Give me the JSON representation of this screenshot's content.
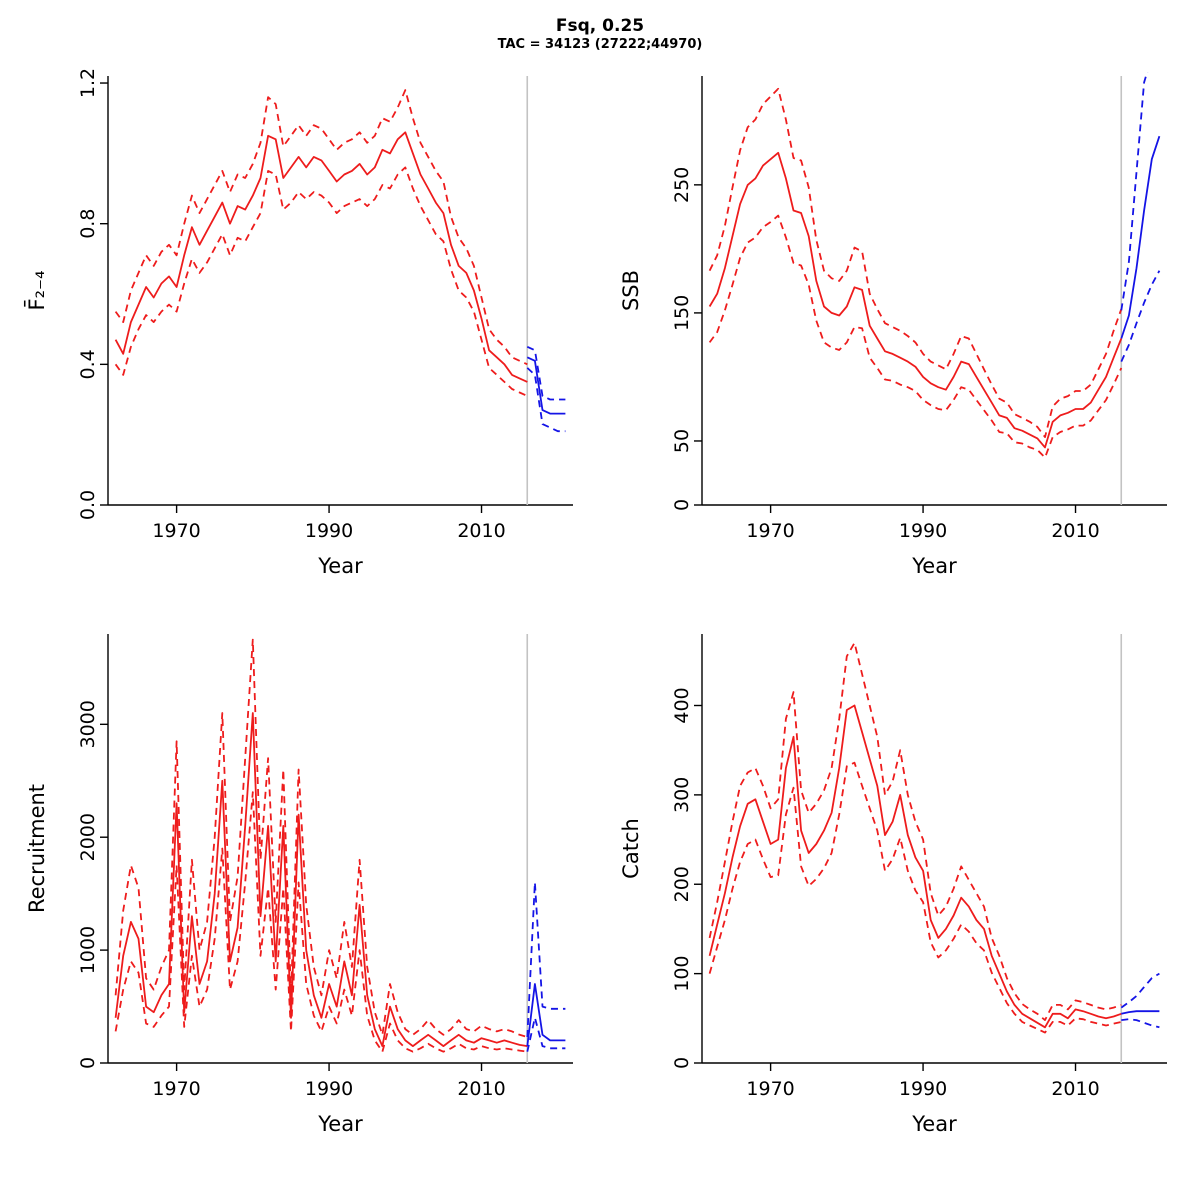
{
  "header": {
    "title": "Fsq, 0.25",
    "subtitle": "TAC = 34123 (27222;44970)"
  },
  "x_years": {
    "history": [
      1962,
      1963,
      1964,
      1965,
      1966,
      1967,
      1968,
      1969,
      1970,
      1971,
      1972,
      1973,
      1974,
      1975,
      1976,
      1977,
      1978,
      1979,
      1980,
      1981,
      1982,
      1983,
      1984,
      1985,
      1986,
      1987,
      1988,
      1989,
      1990,
      1991,
      1992,
      1993,
      1994,
      1995,
      1996,
      1997,
      1998,
      1999,
      2000,
      2001,
      2002,
      2003,
      2004,
      2005,
      2006,
      2007,
      2008,
      2009,
      2010,
      2011,
      2012,
      2013,
      2014,
      2015,
      2016
    ],
    "forecast": [
      2016,
      2017,
      2018,
      2019,
      2020,
      2021
    ]
  },
  "chart_data": [
    {
      "type": "line",
      "name": "fbar",
      "xlabel": "Year",
      "ylabel": "F̄₂₋₄",
      "xlim": [
        1961,
        2022
      ],
      "ylim": [
        0,
        1.22
      ],
      "xticks": [
        1970,
        1990,
        2010
      ],
      "yticks": [
        0,
        0.4,
        0.8,
        1.2
      ],
      "ytick_labels": [
        "0.0",
        "0.4",
        "0.8",
        "1.2"
      ],
      "vline": 2016,
      "colors": {
        "history": "#ee1c1c",
        "forecast": "#1414e6",
        "vline": "#c3c3c3"
      },
      "hist": {
        "median": [
          0.47,
          0.43,
          0.52,
          0.57,
          0.62,
          0.59,
          0.63,
          0.65,
          0.62,
          0.71,
          0.79,
          0.74,
          0.78,
          0.82,
          0.86,
          0.8,
          0.85,
          0.84,
          0.88,
          0.93,
          1.05,
          1.04,
          0.93,
          0.96,
          0.99,
          0.96,
          0.99,
          0.98,
          0.95,
          0.92,
          0.94,
          0.95,
          0.97,
          0.94,
          0.96,
          1.01,
          1.0,
          1.04,
          1.06,
          1.0,
          0.94,
          0.9,
          0.86,
          0.83,
          0.74,
          0.68,
          0.66,
          0.61,
          0.53,
          0.44,
          0.42,
          0.4,
          0.37,
          0.36,
          0.35
        ],
        "upper": [
          0.55,
          0.52,
          0.61,
          0.66,
          0.71,
          0.68,
          0.72,
          0.74,
          0.71,
          0.8,
          0.88,
          0.83,
          0.87,
          0.91,
          0.95,
          0.89,
          0.94,
          0.93,
          0.97,
          1.03,
          1.16,
          1.14,
          1.02,
          1.05,
          1.08,
          1.05,
          1.08,
          1.07,
          1.04,
          1.01,
          1.03,
          1.04,
          1.06,
          1.03,
          1.05,
          1.1,
          1.09,
          1.13,
          1.18,
          1.1,
          1.03,
          0.99,
          0.95,
          0.92,
          0.82,
          0.76,
          0.73,
          0.68,
          0.59,
          0.5,
          0.47,
          0.45,
          0.42,
          0.41,
          0.4
        ],
        "lower": [
          0.4,
          0.37,
          0.45,
          0.5,
          0.54,
          0.52,
          0.55,
          0.57,
          0.55,
          0.63,
          0.7,
          0.66,
          0.69,
          0.73,
          0.77,
          0.71,
          0.76,
          0.75,
          0.79,
          0.83,
          0.95,
          0.94,
          0.84,
          0.86,
          0.89,
          0.87,
          0.89,
          0.88,
          0.86,
          0.83,
          0.85,
          0.86,
          0.87,
          0.85,
          0.87,
          0.91,
          0.9,
          0.94,
          0.96,
          0.9,
          0.85,
          0.81,
          0.77,
          0.75,
          0.67,
          0.61,
          0.59,
          0.55,
          0.47,
          0.39,
          0.37,
          0.35,
          0.33,
          0.32,
          0.31
        ]
      },
      "forecast": {
        "median": [
          0.42,
          0.41,
          0.27,
          0.26,
          0.26,
          0.26
        ],
        "upper": [
          0.45,
          0.44,
          0.31,
          0.3,
          0.3,
          0.3
        ],
        "lower": [
          0.39,
          0.37,
          0.23,
          0.22,
          0.21,
          0.21
        ]
      }
    },
    {
      "type": "line",
      "name": "ssb",
      "xlabel": "Year",
      "ylabel": "SSB",
      "xlim": [
        1961,
        2022
      ],
      "ylim": [
        0,
        335
      ],
      "xticks": [
        1970,
        1990,
        2010
      ],
      "yticks": [
        0,
        50,
        150,
        250
      ],
      "ytick_labels": [
        "0",
        "50",
        "150",
        "250"
      ],
      "vline": 2016,
      "colors": {
        "history": "#ee1c1c",
        "forecast": "#1414e6",
        "vline": "#c3c3c3"
      },
      "hist": {
        "median": [
          155,
          165,
          185,
          210,
          235,
          250,
          255,
          265,
          270,
          275,
          255,
          230,
          228,
          210,
          175,
          155,
          150,
          148,
          155,
          170,
          168,
          140,
          130,
          120,
          118,
          115,
          112,
          108,
          100,
          95,
          92,
          90,
          100,
          112,
          110,
          100,
          90,
          80,
          70,
          68,
          60,
          58,
          55,
          52,
          45,
          65,
          70,
          72,
          75,
          75,
          80,
          90,
          100,
          115,
          130
        ],
        "upper": [
          183,
          195,
          218,
          248,
          277,
          295,
          301,
          313,
          319,
          325,
          301,
          271,
          269,
          248,
          207,
          183,
          177,
          175,
          183,
          201,
          198,
          165,
          153,
          142,
          139,
          136,
          132,
          127,
          118,
          112,
          109,
          106,
          118,
          132,
          130,
          118,
          106,
          94,
          83,
          80,
          71,
          68,
          65,
          61,
          53,
          77,
          83,
          85,
          89,
          89,
          94,
          106,
          118,
          136,
          153
        ],
        "lower": [
          127,
          135,
          152,
          172,
          193,
          205,
          209,
          217,
          221,
          226,
          209,
          189,
          187,
          172,
          144,
          127,
          123,
          121,
          127,
          139,
          138,
          115,
          107,
          98,
          97,
          94,
          92,
          89,
          82,
          78,
          75,
          74,
          82,
          92,
          90,
          82,
          74,
          66,
          57,
          56,
          49,
          48,
          45,
          43,
          37,
          53,
          57,
          59,
          62,
          62,
          66,
          74,
          82,
          94,
          107
        ]
      },
      "forecast": {
        "median": [
          130,
          148,
          185,
          230,
          270,
          288
        ],
        "upper": [
          152,
          190,
          260,
          330,
          350,
          355
        ],
        "lower": [
          112,
          125,
          142,
          158,
          172,
          183
        ]
      }
    },
    {
      "type": "line",
      "name": "recruitment",
      "xlabel": "Year",
      "ylabel": "Recruitment",
      "xlim": [
        1961,
        2022
      ],
      "ylim": [
        0,
        3800
      ],
      "xticks": [
        1970,
        1990,
        2010
      ],
      "yticks": [
        0,
        1000,
        2000,
        3000
      ],
      "ytick_labels": [
        "0",
        "1000",
        "2000",
        "3000"
      ],
      "vline": 2016,
      "colors": {
        "history": "#ee1c1c",
        "forecast": "#1414e6",
        "vline": "#c3c3c3"
      },
      "hist": {
        "median": [
          400,
          950,
          1250,
          1100,
          500,
          450,
          600,
          700,
          2300,
          450,
          1300,
          700,
          900,
          1500,
          2500,
          900,
          1200,
          2100,
          3100,
          1300,
          2100,
          900,
          2100,
          400,
          2200,
          1000,
          600,
          400,
          700,
          500,
          900,
          600,
          1400,
          600,
          300,
          150,
          500,
          300,
          200,
          150,
          200,
          250,
          200,
          150,
          200,
          250,
          200,
          180,
          220,
          200,
          180,
          200,
          180,
          160,
          150
        ],
        "upper": [
          600,
          1350,
          1750,
          1550,
          750,
          650,
          850,
          1000,
          2850,
          650,
          1800,
          1000,
          1250,
          2000,
          3100,
          1250,
          1650,
          2700,
          3750,
          1800,
          2700,
          1250,
          2600,
          600,
          2600,
          1400,
          850,
          600,
          1000,
          750,
          1250,
          850,
          1800,
          850,
          450,
          250,
          700,
          450,
          300,
          250,
          300,
          380,
          300,
          250,
          300,
          380,
          300,
          280,
          330,
          300,
          280,
          300,
          280,
          250,
          230
        ],
        "lower": [
          280,
          650,
          900,
          800,
          350,
          320,
          420,
          500,
          1750,
          320,
          950,
          500,
          650,
          1100,
          1900,
          650,
          900,
          1600,
          2400,
          950,
          1550,
          650,
          1550,
          280,
          1600,
          700,
          420,
          280,
          500,
          350,
          650,
          420,
          1000,
          420,
          200,
          100,
          350,
          200,
          130,
          100,
          130,
          170,
          130,
          100,
          130,
          170,
          130,
          120,
          150,
          130,
          120,
          130,
          120,
          110,
          100
        ]
      },
      "forecast": {
        "median": [
          150,
          700,
          250,
          200,
          200,
          200
        ],
        "upper": [
          230,
          1600,
          500,
          480,
          480,
          480
        ],
        "lower": [
          100,
          400,
          150,
          130,
          130,
          130
        ]
      }
    },
    {
      "type": "line",
      "name": "catch",
      "xlabel": "Year",
      "ylabel": "Catch",
      "xlim": [
        1961,
        2022
      ],
      "ylim": [
        0,
        480
      ],
      "xticks": [
        1970,
        1990,
        2010
      ],
      "yticks": [
        0,
        100,
        200,
        300,
        400
      ],
      "ytick_labels": [
        "0",
        "100",
        "200",
        "300",
        "400"
      ],
      "vline": 2016,
      "colors": {
        "history": "#ee1c1c",
        "forecast": "#1414e6",
        "vline": "#c3c3c3"
      },
      "hist": {
        "median": [
          120,
          155,
          190,
          230,
          265,
          290,
          295,
          270,
          245,
          250,
          330,
          365,
          260,
          235,
          245,
          260,
          280,
          330,
          395,
          400,
          370,
          340,
          310,
          255,
          270,
          300,
          255,
          230,
          215,
          160,
          140,
          150,
          165,
          185,
          175,
          160,
          150,
          120,
          100,
          80,
          65,
          55,
          50,
          45,
          40,
          55,
          55,
          50,
          60,
          58,
          55,
          52,
          50,
          52,
          55
        ],
        "upper": [
          140,
          180,
          225,
          270,
          310,
          325,
          330,
          310,
          285,
          295,
          385,
          415,
          305,
          280,
          290,
          305,
          330,
          385,
          455,
          470,
          435,
          400,
          365,
          300,
          315,
          350,
          300,
          270,
          250,
          190,
          165,
          175,
          195,
          220,
          205,
          190,
          175,
          140,
          120,
          95,
          78,
          66,
          60,
          55,
          48,
          65,
          65,
          60,
          70,
          68,
          65,
          62,
          60,
          62,
          65
        ],
        "lower": [
          100,
          130,
          160,
          195,
          225,
          245,
          250,
          228,
          208,
          210,
          278,
          308,
          220,
          198,
          206,
          218,
          235,
          278,
          332,
          336,
          310,
          285,
          260,
          215,
          228,
          252,
          215,
          193,
          180,
          135,
          118,
          126,
          139,
          155,
          147,
          134,
          126,
          101,
          84,
          67,
          55,
          46,
          42,
          38,
          34,
          46,
          46,
          42,
          50,
          49,
          46,
          44,
          42,
          44,
          46
        ]
      },
      "forecast": {
        "median": [
          55,
          57,
          58,
          58,
          58,
          58
        ],
        "upper": [
          62,
          68,
          75,
          85,
          95,
          100
        ],
        "lower": [
          48,
          49,
          48,
          45,
          42,
          40
        ]
      }
    }
  ]
}
